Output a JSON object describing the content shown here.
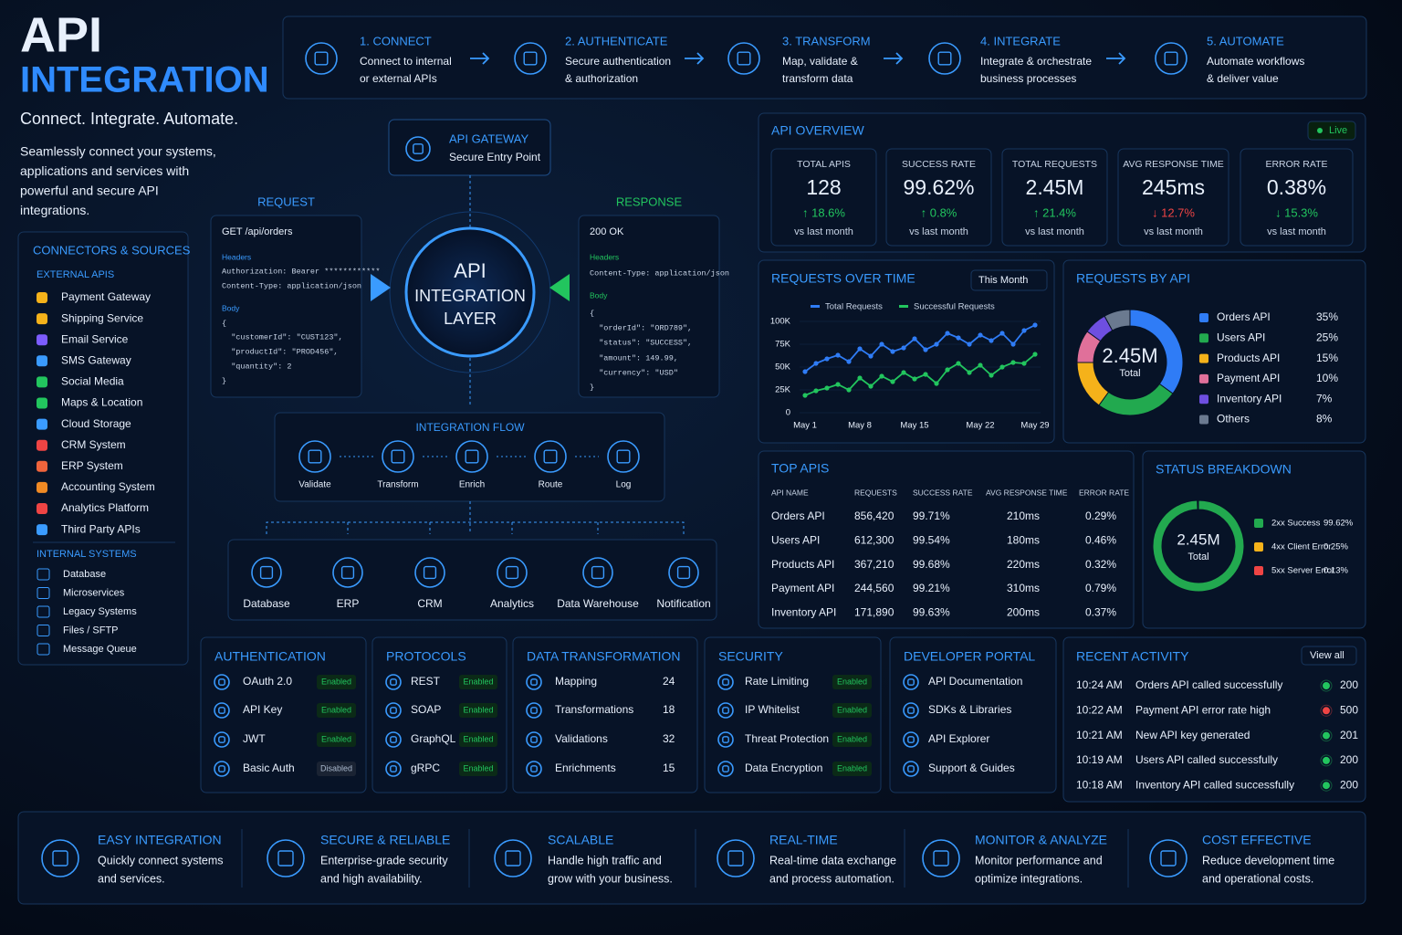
{
  "hero": {
    "title": "API",
    "title2": "INTEGRATION",
    "tagline": "Connect. Integrate. Automate.",
    "description": [
      "Seamlessly connect your systems,",
      "applications and services with",
      "powerful and secure API",
      "integrations."
    ]
  },
  "steps": [
    {
      "title": "1. CONNECT",
      "text": [
        "Connect to internal",
        "or external APIs"
      ]
    },
    {
      "title": "2. AUTHENTICATE",
      "text": [
        "Secure authentication",
        "& authorization"
      ]
    },
    {
      "title": "3. TRANSFORM",
      "text": [
        "Map, validate &",
        "transform data"
      ]
    },
    {
      "title": "4. INTEGRATE",
      "text": [
        "Integrate & orchestrate",
        "business processes"
      ]
    },
    {
      "title": "5. AUTOMATE",
      "text": [
        "Automate workflows",
        "& deliver value"
      ]
    }
  ],
  "connectors": {
    "title": "CONNECTORS & SOURCES",
    "external_title": "EXTERNAL APIS",
    "external": [
      "Payment Gateway",
      "Shipping Service",
      "Email Service",
      "SMS Gateway",
      "Social Media",
      "Maps & Location",
      "Cloud Storage",
      "CRM System",
      "ERP System",
      "Accounting System",
      "Analytics Platform",
      "Third Party APIs"
    ],
    "internal_title": "INTERNAL SYSTEMS",
    "internal": [
      "Database",
      "Microservices",
      "Legacy Systems",
      "Files / SFTP",
      "Message Queue"
    ]
  },
  "gateway": {
    "title": "API GATEWAY",
    "subtitle": "Secure Entry Point"
  },
  "request": {
    "label": "REQUEST",
    "lines": [
      "GET /api/orders",
      "Headers",
      "Authorization: Bearer ************",
      "Content-Type: application/json",
      "Body",
      "{",
      "  \"customerId\": \"CUST123\",",
      "  \"productId\": \"PROD456\",",
      "  \"quantity\": 2",
      "}"
    ]
  },
  "response": {
    "label": "RESPONSE",
    "lines": [
      "200 OK",
      "Headers",
      "Content-Type: application/json",
      "Body",
      "{",
      "  \"orderId\": \"ORD789\",",
      "  \"status\": \"SUCCESS\",",
      "  \"amount\": 149.99,",
      "  \"currency\": \"USD\"",
      "}"
    ]
  },
  "core": {
    "lines": [
      "API",
      "INTEGRATION",
      "LAYER"
    ]
  },
  "flow": {
    "title": "INTEGRATION FLOW",
    "steps": [
      "Validate",
      "Transform",
      "Enrich",
      "Route",
      "Log"
    ]
  },
  "targets": [
    "Database",
    "ERP",
    "CRM",
    "Analytics",
    "Data Warehouse",
    "Notification"
  ],
  "overview": {
    "title": "API OVERVIEW",
    "status": "Live",
    "kpis": [
      {
        "label": "TOTAL APIS",
        "value": "128",
        "change": "↑ 18.6%",
        "color": "#22c55e",
        "note": "vs last month"
      },
      {
        "label": "SUCCESS RATE",
        "value": "99.62%",
        "change": "↑ 0.8%",
        "color": "#22c55e",
        "note": "vs last month"
      },
      {
        "label": "TOTAL REQUESTS",
        "value": "2.45M",
        "change": "↑ 21.4%",
        "color": "#22c55e",
        "note": "vs last month"
      },
      {
        "label": "AVG RESPONSE TIME",
        "value": "245ms",
        "change": "↓ 12.7%",
        "color": "#ef4444",
        "note": "vs last month"
      },
      {
        "label": "ERROR RATE",
        "value": "0.38%",
        "change": "↓ 15.3%",
        "color": "#22c55e",
        "note": "vs last month"
      }
    ]
  },
  "chart_data": [
    {
      "type": "line",
      "title": "REQUESTS OVER TIME",
      "selector": "This Month",
      "categories": [
        "May 1",
        null,
        null,
        null,
        null,
        "May 8",
        null,
        null,
        null,
        null,
        "May 15",
        null,
        null,
        null,
        null,
        null,
        "May 22",
        null,
        null,
        null,
        null,
        "May 29"
      ],
      "series": [
        {
          "name": "Total Requests",
          "color": "#2f7cf6",
          "values": [
            45000,
            54000,
            59000,
            63000,
            56000,
            70000,
            62000,
            75000,
            67000,
            71000,
            81000,
            69000,
            75000,
            87000,
            82000,
            75000,
            85000,
            79000,
            87000,
            75000,
            90000,
            96000
          ]
        },
        {
          "name": "Successful Requests",
          "color": "#22c55e",
          "values": [
            19000,
            24000,
            27000,
            31000,
            25000,
            38000,
            29000,
            40000,
            34000,
            44000,
            37000,
            42000,
            32000,
            47000,
            54000,
            44000,
            52000,
            41000,
            50000,
            55000,
            54000,
            64000
          ]
        }
      ],
      "ylim": [
        0,
        100000
      ],
      "yticks": [
        0,
        {
          "value": 25000,
          "label": "25K"
        },
        {
          "value": 50000,
          "label": "50K"
        },
        {
          "value": 75000,
          "label": "75K"
        },
        {
          "value": 100000,
          "label": "100K"
        }
      ],
      "grid": true
    },
    {
      "type": "donut",
      "title": "REQUESTS BY API",
      "center_value": "2.45M",
      "center_label": "Total",
      "categories": [
        "Orders API",
        "Users API",
        "Products API",
        "Payment API",
        "Inventory API",
        "Others"
      ],
      "values": [
        35,
        25,
        15,
        10,
        7,
        8
      ],
      "value_labels": [
        "35%",
        "25%",
        "15%",
        "10%",
        "7%",
        "8%"
      ],
      "colors": [
        "#2f7cf6",
        "#22a94f",
        "#f5b21a",
        "#e0709a",
        "#6e4fe0",
        "#6b7a90"
      ]
    },
    {
      "type": "donut",
      "title": "STATUS BREAKDOWN",
      "center_value": "2.45M",
      "center_label": "Total",
      "categories": [
        "2xx Success",
        "4xx Client Error",
        "5xx Server Error"
      ],
      "values": [
        99.62,
        0.25,
        0.13
      ],
      "value_labels": [
        "99.62%",
        "0.25%",
        "0.13%"
      ],
      "colors": [
        "#22a94f",
        "#f5b21a",
        "#ef4444"
      ]
    }
  ],
  "top_apis": {
    "title": "TOP APIS",
    "columns": [
      "API NAME",
      "REQUESTS",
      "SUCCESS RATE",
      "AVG RESPONSE TIME",
      "ERROR RATE"
    ],
    "rows": [
      [
        "Orders API",
        "856,420",
        "99.71%",
        "210ms",
        "0.29%"
      ],
      [
        "Users API",
        "612,300",
        "99.54%",
        "180ms",
        "0.46%"
      ],
      [
        "Products API",
        "367,210",
        "99.68%",
        "220ms",
        "0.32%"
      ],
      [
        "Payment API",
        "244,560",
        "99.21%",
        "310ms",
        "0.79%"
      ],
      [
        "Inventory API",
        "171,890",
        "99.63%",
        "200ms",
        "0.37%"
      ]
    ]
  },
  "panels": [
    {
      "title": "AUTHENTICATION",
      "items": [
        {
          "name": "OAuth 2.0",
          "badge": "Enabled"
        },
        {
          "name": "API Key",
          "badge": "Enabled"
        },
        {
          "name": "JWT",
          "badge": "Enabled"
        },
        {
          "name": "Basic Auth",
          "badge": "Disabled"
        }
      ]
    },
    {
      "title": "PROTOCOLS",
      "items": [
        {
          "name": "REST",
          "badge": "Enabled"
        },
        {
          "name": "SOAP",
          "badge": "Enabled"
        },
        {
          "name": "GraphQL",
          "badge": "Enabled"
        },
        {
          "name": "gRPC",
          "badge": "Enabled"
        }
      ]
    },
    {
      "title": "DATA TRANSFORMATION",
      "items": [
        {
          "name": "Mapping",
          "count": "24"
        },
        {
          "name": "Transformations",
          "count": "18"
        },
        {
          "name": "Validations",
          "count": "32"
        },
        {
          "name": "Enrichments",
          "count": "15"
        }
      ]
    },
    {
      "title": "SECURITY",
      "items": [
        {
          "name": "Rate Limiting",
          "badge": "Enabled"
        },
        {
          "name": "IP Whitelist",
          "badge": "Enabled"
        },
        {
          "name": "Threat Protection",
          "badge": "Enabled"
        },
        {
          "name": "Data Encryption",
          "badge": "Enabled"
        }
      ]
    },
    {
      "title": "DEVELOPER PORTAL",
      "items": [
        {
          "name": "API Documentation"
        },
        {
          "name": "SDKs & Libraries"
        },
        {
          "name": "API Explorer"
        },
        {
          "name": "Support & Guides"
        }
      ]
    }
  ],
  "activity": {
    "title": "RECENT ACTIVITY",
    "button": "View all",
    "items": [
      {
        "time": "10:24 AM",
        "text": "Orders API called successfully",
        "code": "200",
        "color": "#22c55e"
      },
      {
        "time": "10:22 AM",
        "text": "Payment API error rate high",
        "code": "500",
        "color": "#ef4444"
      },
      {
        "time": "10:21 AM",
        "text": "New API key generated",
        "code": "201",
        "color": "#22c55e"
      },
      {
        "time": "10:19 AM",
        "text": "Users API called successfully",
        "code": "200",
        "color": "#22c55e"
      },
      {
        "time": "10:18 AM",
        "text": "Inventory API called successfully",
        "code": "200",
        "color": "#22c55e"
      }
    ]
  },
  "features": [
    {
      "title": "EASY INTEGRATION",
      "text": [
        "Quickly connect systems",
        "and services."
      ]
    },
    {
      "title": "SECURE & RELIABLE",
      "text": [
        "Enterprise-grade security",
        "and high availability."
      ]
    },
    {
      "title": "SCALABLE",
      "text": [
        "Handle high traffic and",
        "grow with your business."
      ]
    },
    {
      "title": "REAL-TIME",
      "text": [
        "Real-time data exchange",
        "and process automation."
      ]
    },
    {
      "title": "MONITOR & ANALYZE",
      "text": [
        "Monitor performance and",
        "optimize integrations."
      ]
    },
    {
      "title": "COST EFFECTIVE",
      "text": [
        "Reduce development time",
        "and operational costs."
      ]
    }
  ]
}
